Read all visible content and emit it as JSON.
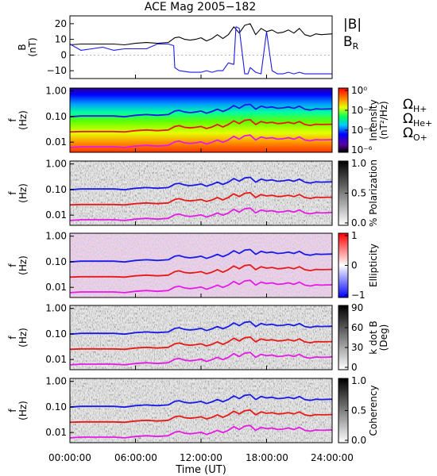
{
  "chart_data": {
    "type": "line",
    "title": "ACE Mag 2005−182",
    "xlabel": "Time (UT)",
    "xlim": [
      0,
      24
    ],
    "xticks": [
      0,
      6,
      12,
      18,
      24
    ],
    "xtick_labels": [
      "00:00:00",
      "06:00:00",
      "12:00:00",
      "18:00:00",
      "24:00:00"
    ],
    "panels": [
      {
        "id": "field",
        "type": "line",
        "ylabel_lines": [
          "B",
          "(nT)"
        ],
        "ylim": [
          -15,
          25
        ],
        "yticks": [
          -10,
          0,
          10,
          20
        ],
        "ytick_labels": [
          "−10",
          "0",
          "10",
          "20"
        ],
        "legend": [
          {
            "text": "|B|",
            "color": "#000000"
          },
          {
            "text": "B",
            "sub": "R",
            "color": "#1a1ae6"
          }
        ],
        "series": [
          {
            "name": "|B|",
            "color": "#000000",
            "x": [
              0,
              1,
              2,
              3,
              4,
              5,
              6,
              7,
              8,
              9,
              9.6,
              10,
              10.5,
              11,
              11.5,
              12,
              12.5,
              13,
              13.5,
              14,
              14.5,
              15,
              15.5,
              16,
              16.5,
              17,
              17.5,
              18,
              18.5,
              19,
              19.5,
              20,
              20.5,
              21,
              21.5,
              22,
              22.5,
              23,
              24
            ],
            "y": [
              6.5,
              7,
              7,
              7,
              7,
              6.5,
              7.5,
              8,
              7.5,
              8,
              11,
              11.5,
              10,
              9.5,
              10,
              11,
              9,
              10.5,
              13,
              10.5,
              13,
              18,
              14,
              19,
              20,
              13,
              17,
              15,
              16,
              14,
              14.5,
              16,
              14,
              17,
              13,
              12,
              13.5,
              13,
              13.5
            ]
          },
          {
            "name": "B_R",
            "color": "#1a1ae6",
            "x": [
              0,
              1,
              2,
              3,
              4,
              5,
              6,
              7,
              8,
              9,
              9.5,
              9.6,
              10,
              11,
              12,
              12.5,
              13,
              13.5,
              14,
              14.5,
              15,
              15.2,
              15.5,
              16,
              16.3,
              16.5,
              17,
              17.5,
              18,
              18.5,
              19,
              19.5,
              20,
              20.5,
              21,
              21.5,
              22,
              23,
              24
            ],
            "y": [
              7,
              3,
              4,
              5,
              3,
              4,
              4,
              4,
              7,
              7,
              6,
              -8,
              -10,
              -11,
              -11,
              -10,
              -11,
              -10,
              -10,
              -5,
              -6,
              18,
              17,
              -12,
              -12,
              -8,
              -11,
              -12,
              15,
              -10,
              -12,
              -12,
              -11,
              -12,
              -11,
              -12,
              -12,
              -12,
              -12
            ]
          }
        ]
      },
      {
        "id": "intensity",
        "type": "heatmap",
        "ylabel_lines": [
          "f",
          "(Hz)"
        ],
        "ylim": [
          0.004,
          1.3
        ],
        "yscale": "log",
        "ytick_labels": [
          "1.00",
          "0.10",
          "0.01"
        ],
        "colorbar": {
          "label_lines": [
            "Intensity",
            "(nT²/Hz)"
          ],
          "colormap": "rainbow",
          "scale": "log",
          "range": [
            1e-06,
            1
          ],
          "tick_values": [
            1,
            0.01,
            0.0001,
            1e-06
          ],
          "tick_labels": [
            "10⁰",
            "10⁻²",
            "10⁻⁴",
            "10⁻⁶"
          ]
        },
        "legend": [
          {
            "text": "Ω",
            "sub": "H+",
            "color": "#1a1ae6"
          },
          {
            "text": "Ω",
            "sub": "He+",
            "color": "#e61a1a"
          },
          {
            "text": "Ω",
            "sub": "O+",
            "color": "#e61ae6"
          }
        ]
      },
      {
        "id": "polarization",
        "type": "heatmap",
        "ylabel_lines": [
          "f",
          "(Hz)"
        ],
        "ylim": [
          0.004,
          1.3
        ],
        "yscale": "log",
        "ytick_labels": [
          "1.00",
          "0.10",
          "0.01"
        ],
        "colorbar": {
          "label_lines": [
            "% Polarization"
          ],
          "colormap": "gray",
          "range": [
            0,
            1
          ],
          "tick_values": [
            1,
            0.5,
            0
          ],
          "tick_labels": [
            "1.0",
            "0.5",
            "0.0"
          ]
        }
      },
      {
        "id": "ellipticity",
        "type": "heatmap",
        "ylabel_lines": [
          "f",
          "(Hz)"
        ],
        "ylim": [
          0.004,
          1.3
        ],
        "yscale": "log",
        "ytick_labels": [
          "1.00",
          "0.10",
          "0.01"
        ],
        "colorbar": {
          "label_lines": [
            "Ellipticity"
          ],
          "colormap": "bluewhitered",
          "range": [
            -1,
            1
          ],
          "tick_values": [
            1,
            0,
            -1
          ],
          "tick_labels": [
            "1",
            "0",
            "−1"
          ]
        }
      },
      {
        "id": "kdotb",
        "type": "heatmap",
        "ylabel_lines": [
          "f",
          "(Hz)"
        ],
        "ylim": [
          0.004,
          1.3
        ],
        "yscale": "log",
        "ytick_labels": [
          "1.00",
          "0.10",
          "0.01"
        ],
        "colorbar": {
          "label_lines": [
            "k dot B",
            "(Deg)"
          ],
          "colormap": "gray",
          "range": [
            0,
            90
          ],
          "tick_values": [
            90,
            60,
            30,
            0
          ],
          "tick_labels": [
            "90",
            "60",
            "30",
            "0"
          ]
        }
      },
      {
        "id": "coherency",
        "type": "heatmap",
        "ylabel_lines": [
          "f",
          "(Hz)"
        ],
        "ylim": [
          0.004,
          1.3
        ],
        "yscale": "log",
        "ytick_labels": [
          "1.00",
          "0.10",
          "0.01"
        ],
        "colorbar": {
          "label_lines": [
            "Coherency"
          ],
          "colormap": "gray",
          "range": [
            0,
            1
          ],
          "tick_values": [
            1,
            0.5,
            0
          ],
          "tick_labels": [
            "1.0",
            "0.5",
            "0.0"
          ]
        }
      }
    ],
    "gyrofrequency_lines": {
      "x": [
        0,
        1,
        2,
        3,
        4,
        5,
        6,
        7,
        8,
        9,
        9.6,
        10,
        10.5,
        11,
        11.5,
        12,
        12.5,
        13,
        13.5,
        14,
        14.5,
        15,
        15.5,
        16,
        16.5,
        17,
        17.5,
        18,
        18.5,
        19,
        19.5,
        20,
        20.5,
        21,
        21.5,
        22,
        22.5,
        23,
        24
      ],
      "series": [
        {
          "name": "ΩH+",
          "color": "#1a1ae6",
          "y": [
            0.098,
            0.105,
            0.105,
            0.105,
            0.105,
            0.098,
            0.112,
            0.12,
            0.112,
            0.12,
            0.165,
            0.175,
            0.15,
            0.142,
            0.15,
            0.165,
            0.135,
            0.158,
            0.195,
            0.158,
            0.195,
            0.27,
            0.21,
            0.285,
            0.3,
            0.195,
            0.255,
            0.225,
            0.24,
            0.21,
            0.218,
            0.24,
            0.21,
            0.255,
            0.195,
            0.18,
            0.2,
            0.195,
            0.2
          ]
        },
        {
          "name": "ΩHe+",
          "color": "#e61a1a",
          "y": [
            0.025,
            0.026,
            0.026,
            0.026,
            0.026,
            0.025,
            0.028,
            0.03,
            0.028,
            0.03,
            0.041,
            0.044,
            0.038,
            0.036,
            0.038,
            0.041,
            0.034,
            0.039,
            0.049,
            0.039,
            0.049,
            0.068,
            0.053,
            0.071,
            0.075,
            0.049,
            0.064,
            0.056,
            0.06,
            0.053,
            0.055,
            0.06,
            0.053,
            0.064,
            0.049,
            0.045,
            0.05,
            0.049,
            0.05
          ]
        },
        {
          "name": "ΩO+",
          "color": "#e61ae6",
          "y": [
            0.0062,
            0.0066,
            0.0066,
            0.0066,
            0.0066,
            0.0062,
            0.007,
            0.0075,
            0.007,
            0.0075,
            0.0103,
            0.011,
            0.0094,
            0.0089,
            0.0094,
            0.0103,
            0.0084,
            0.0099,
            0.0122,
            0.0099,
            0.0122,
            0.0169,
            0.0131,
            0.0178,
            0.0188,
            0.0122,
            0.016,
            0.0141,
            0.015,
            0.0131,
            0.0136,
            0.015,
            0.0131,
            0.016,
            0.0122,
            0.0113,
            0.0125,
            0.0122,
            0.0125
          ]
        }
      ]
    }
  }
}
